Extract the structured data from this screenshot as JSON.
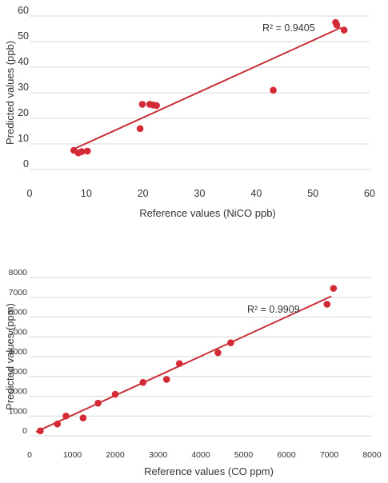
{
  "chart_data": [
    {
      "type": "scatter",
      "xlabel": "Reference values (NiCO ppb)",
      "ylabel": "Predicted values (ppb)",
      "xlim": [
        0,
        60
      ],
      "ylim": [
        0,
        60
      ],
      "xticks": [
        "0",
        "10",
        "20",
        "30",
        "40",
        "50",
        "60"
      ],
      "yticks": [
        "0",
        "10",
        "20",
        "30",
        "40",
        "50",
        "60"
      ],
      "grid": "horizontal",
      "annotation": "R² = 0.9405",
      "point_color": "#d42a35",
      "line_color": "#c8303a",
      "points": [
        {
          "x": 7.8,
          "y": 7.5
        },
        {
          "x": 8.6,
          "y": 6.5
        },
        {
          "x": 9.2,
          "y": 7.0
        },
        {
          "x": 10.2,
          "y": 7.2
        },
        {
          "x": 19.5,
          "y": 16.0
        },
        {
          "x": 19.9,
          "y": 25.5
        },
        {
          "x": 21.2,
          "y": 25.5
        },
        {
          "x": 21.8,
          "y": 25.2
        },
        {
          "x": 22.4,
          "y": 25.0
        },
        {
          "x": 43.0,
          "y": 31.0
        },
        {
          "x": 54.0,
          "y": 57.5
        },
        {
          "x": 54.2,
          "y": 56.5
        },
        {
          "x": 55.5,
          "y": 54.5
        }
      ],
      "trendline": [
        {
          "x": 7.8,
          "y": 8.0
        },
        {
          "x": 55.0,
          "y": 55.5
        }
      ]
    },
    {
      "type": "scatter",
      "xlabel": "Reference values (CO ppm)",
      "ylabel": "Predicted values (ppm)",
      "xlim": [
        0,
        8000
      ],
      "ylim": [
        0,
        8000
      ],
      "xticks": [
        "0",
        "1000",
        "2000",
        "3000",
        "4000",
        "5000",
        "6000",
        "7000",
        "8000"
      ],
      "yticks": [
        "0",
        "1000",
        "2000",
        "3000",
        "4000",
        "5000",
        "6000",
        "7000",
        "8000"
      ],
      "grid": "horizontal",
      "annotation": "R² = 0.9909",
      "point_color": "#d42a35",
      "line_color": "#c8303a",
      "points": [
        {
          "x": 250,
          "y": 250
        },
        {
          "x": 650,
          "y": 600
        },
        {
          "x": 850,
          "y": 1000
        },
        {
          "x": 1250,
          "y": 900
        },
        {
          "x": 1600,
          "y": 1650
        },
        {
          "x": 2000,
          "y": 2100
        },
        {
          "x": 2650,
          "y": 2700
        },
        {
          "x": 3200,
          "y": 2850
        },
        {
          "x": 3500,
          "y": 3650
        },
        {
          "x": 4400,
          "y": 4200
        },
        {
          "x": 4700,
          "y": 4700
        },
        {
          "x": 6950,
          "y": 6650
        },
        {
          "x": 7100,
          "y": 7450
        }
      ],
      "trendline": [
        {
          "x": 150,
          "y": 200
        },
        {
          "x": 7050,
          "y": 7050
        }
      ]
    }
  ]
}
